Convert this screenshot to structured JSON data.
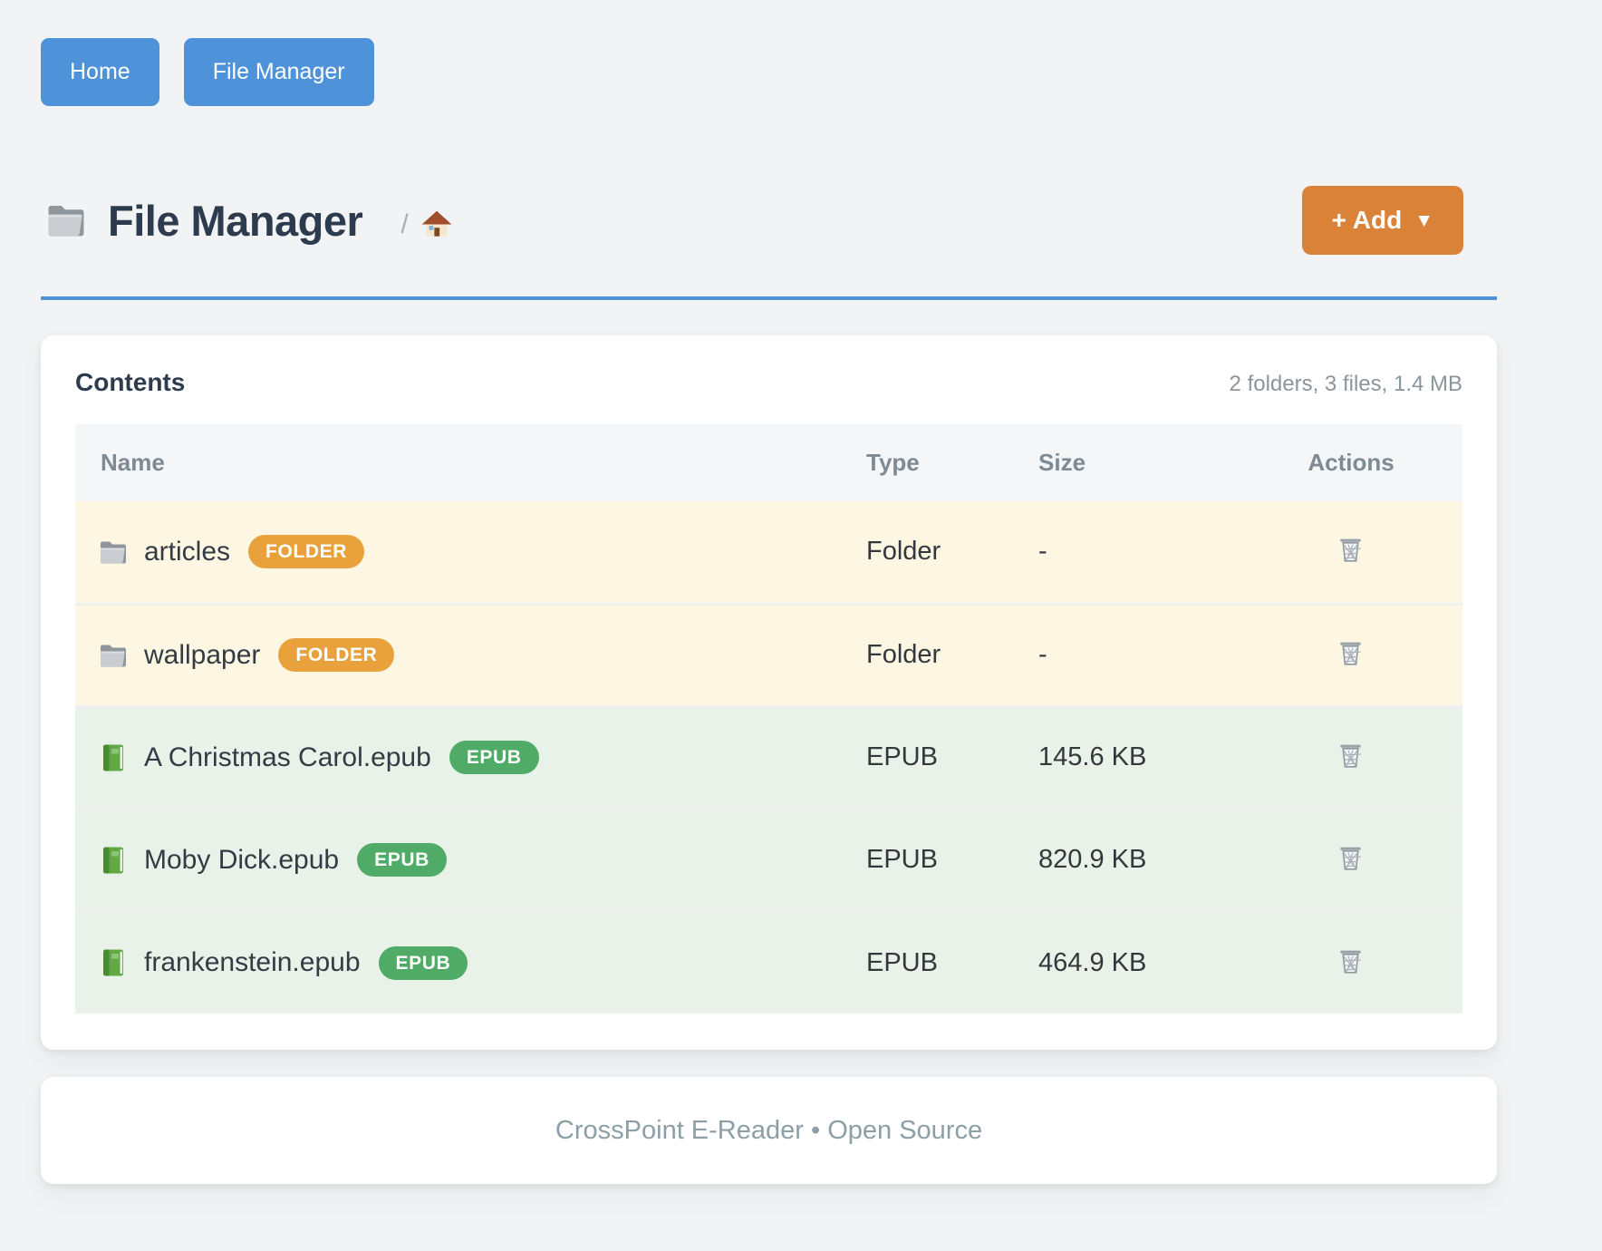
{
  "nav": {
    "buttons": [
      {
        "label": "Home"
      },
      {
        "label": "File Manager"
      }
    ]
  },
  "header": {
    "title": "File Manager",
    "title_icon": "folder-icon",
    "breadcrumb_separator": "/",
    "breadcrumb_home_icon": "house-icon",
    "add_button": {
      "label": "+ Add",
      "caret": "▼"
    }
  },
  "contents": {
    "title": "Contents",
    "summary": "2 folders, 3 files, 1.4 MB",
    "table": {
      "columns": [
        "Name",
        "Type",
        "Size",
        "Actions"
      ],
      "action_icon": "trash-icon",
      "rows": [
        {
          "name": "articles",
          "icon": "folder-icon",
          "badge": "FOLDER",
          "badge_color": "#e9a23b",
          "kind": "folder",
          "type": "Folder",
          "size": "-"
        },
        {
          "name": "wallpaper",
          "icon": "folder-icon",
          "badge": "FOLDER",
          "badge_color": "#e9a23b",
          "kind": "folder",
          "type": "Folder",
          "size": "-"
        },
        {
          "name": "A Christmas Carol.epub",
          "icon": "book-icon",
          "badge": "EPUB",
          "badge_color": "#50ab66",
          "kind": "file",
          "type": "EPUB",
          "size": "145.6 KB"
        },
        {
          "name": "Moby Dick.epub",
          "icon": "book-icon",
          "badge": "EPUB",
          "badge_color": "#50ab66",
          "kind": "file",
          "type": "EPUB",
          "size": "820.9 KB"
        },
        {
          "name": "frankenstein.epub",
          "icon": "book-icon",
          "badge": "EPUB",
          "badge_color": "#50ab66",
          "kind": "file",
          "type": "EPUB",
          "size": "464.9 KB"
        }
      ]
    }
  },
  "footer": {
    "text": "CrossPoint E-Reader • Open Source"
  },
  "colors": {
    "accent_blue": "#4e93da",
    "add_orange": "#da8338",
    "folder_badge": "#e9a23b",
    "epub_badge": "#50ab66",
    "folder_row_bg": "#fdf6e2",
    "file_row_bg": "#e8f2e8"
  }
}
